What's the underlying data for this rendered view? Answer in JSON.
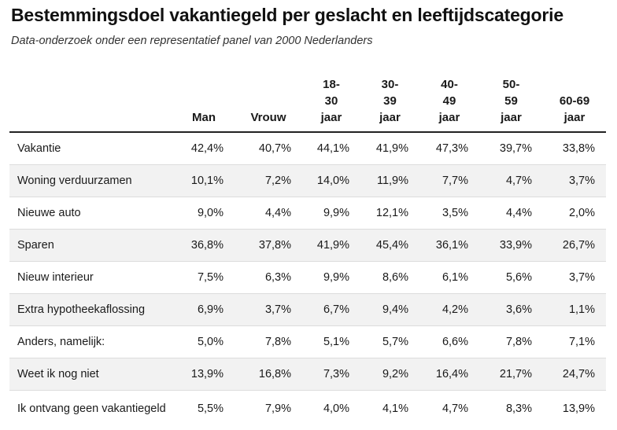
{
  "title": "Bestemmingsdoel vakantiegeld per geslacht en leeftijdscategorie",
  "subtitle": "Data-onderzoek onder een representatief panel van 2000 Nederlanders",
  "colors": {
    "header_rule": "#222222",
    "alt_row": "#f2f2f2",
    "row_rule": "#dcdcdc"
  },
  "chart_data": {
    "type": "table",
    "title": "Bestemmingsdoel vakantiegeld per geslacht en leeftijdscategorie",
    "subtitle": "Data-onderzoek onder een representatief panel van 2000 Nederlanders",
    "columns": [
      "",
      "Man",
      "Vrouw",
      "18-\n30\njaar",
      "30-\n39\njaar",
      "40-\n49\njaar",
      "50-\n59\njaar",
      "60-69\njaar"
    ],
    "rows": [
      {
        "label": "Vakantie",
        "values": [
          "42,4%",
          "40,7%",
          "44,1%",
          "41,9%",
          "47,3%",
          "39,7%",
          "33,8%"
        ]
      },
      {
        "label": "Woning verduurzamen",
        "values": [
          "10,1%",
          "7,2%",
          "14,0%",
          "11,9%",
          "7,7%",
          "4,7%",
          "3,7%"
        ]
      },
      {
        "label": "Nieuwe auto",
        "values": [
          "9,0%",
          "4,4%",
          "9,9%",
          "12,1%",
          "3,5%",
          "4,4%",
          "2,0%"
        ]
      },
      {
        "label": "Sparen",
        "values": [
          "36,8%",
          "37,8%",
          "41,9%",
          "45,4%",
          "36,1%",
          "33,9%",
          "26,7%"
        ]
      },
      {
        "label": "Nieuw interieur",
        "values": [
          "7,5%",
          "6,3%",
          "9,9%",
          "8,6%",
          "6,1%",
          "5,6%",
          "3,7%"
        ]
      },
      {
        "label": "Extra hypotheekaflossing",
        "values": [
          "6,9%",
          "3,7%",
          "6,7%",
          "9,4%",
          "4,2%",
          "3,6%",
          "1,1%"
        ]
      },
      {
        "label": "Anders, namelijk:",
        "values": [
          "5,0%",
          "7,8%",
          "5,1%",
          "5,7%",
          "6,6%",
          "7,8%",
          "7,1%"
        ]
      },
      {
        "label": "Weet ik nog niet",
        "values": [
          "13,9%",
          "16,8%",
          "7,3%",
          "9,2%",
          "16,4%",
          "21,7%",
          "24,7%"
        ]
      },
      {
        "label": "Ik ontvang geen vakantiegeld",
        "values": [
          "5,5%",
          "7,9%",
          "4,0%",
          "4,1%",
          "4,7%",
          "8,3%",
          "13,9%"
        ]
      }
    ]
  }
}
